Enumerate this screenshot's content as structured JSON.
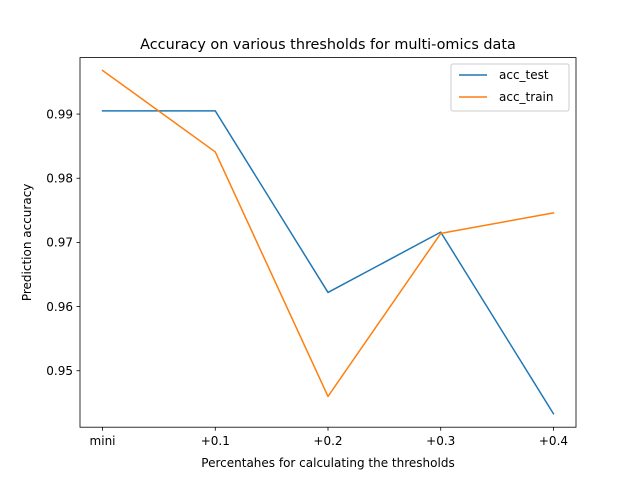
{
  "chart_data": {
    "type": "line",
    "title": "Accuracy on various thresholds for multi-omics data",
    "xlabel": "Percentahes for calculating the thresholds",
    "ylabel": "Prediction accuracy",
    "categories": [
      "mini",
      "+0.1",
      "+0.2",
      "+0.3",
      "+0.4"
    ],
    "ylim": [
      0.9412,
      0.9988
    ],
    "yticks": [
      0.95,
      0.96,
      0.97,
      0.98,
      0.99
    ],
    "ytick_labels": [
      "0.95",
      "0.96",
      "0.97",
      "0.98",
      "0.99"
    ],
    "grid": false,
    "legend_position": "top-right",
    "series": [
      {
        "name": "acc_test",
        "color": "#1f77b4",
        "values": [
          0.9905,
          0.9905,
          0.9622,
          0.9716,
          0.9433
        ]
      },
      {
        "name": "acc_train",
        "color": "#ff7f0e",
        "values": [
          0.9968,
          0.9841,
          0.946,
          0.9714,
          0.9746
        ]
      }
    ]
  }
}
